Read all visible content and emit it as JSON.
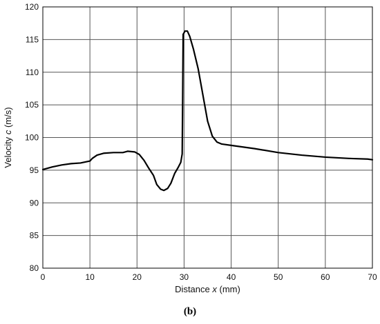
{
  "chart_data": {
    "type": "line",
    "title": "",
    "xlabel": {
      "prefix": "Distance ",
      "var": "x",
      "suffix": " (mm)"
    },
    "ylabel": {
      "prefix": "Velocity ",
      "var": "c",
      "suffix": " (m/s)"
    },
    "xlim": [
      0,
      70
    ],
    "ylim": [
      80,
      120
    ],
    "xticks": [
      0,
      10,
      20,
      30,
      40,
      50,
      60,
      70
    ],
    "yticks": [
      80,
      85,
      90,
      95,
      100,
      105,
      110,
      115,
      120
    ],
    "grid": true,
    "line_color": "#000000",
    "grid_color": "#555555",
    "series": [
      {
        "x": [
          0,
          2,
          4,
          6,
          8,
          10,
          10.5,
          11.5,
          13,
          15,
          17,
          18,
          19.5,
          20.5,
          21.5,
          22.5,
          23.5,
          24.2,
          25,
          25.7,
          26.5,
          27.2,
          28,
          28.8,
          29.3,
          29.6,
          29.7,
          29.8,
          30.2,
          30.7,
          31.2,
          32,
          33,
          34,
          35,
          36,
          37,
          38,
          40,
          45,
          50,
          55,
          60,
          65,
          69,
          70
        ],
        "y": [
          95.1,
          95.5,
          95.8,
          96.0,
          96.1,
          96.4,
          96.8,
          97.3,
          97.6,
          97.7,
          97.7,
          97.9,
          97.8,
          97.4,
          96.5,
          95.3,
          94.2,
          92.8,
          92.1,
          91.9,
          92.2,
          93.0,
          94.5,
          95.5,
          96.2,
          97.5,
          106,
          115.8,
          116.3,
          116.3,
          115.5,
          113.5,
          110.5,
          106.5,
          102.5,
          100.2,
          99.3,
          99.0,
          98.8,
          98.3,
          97.7,
          97.3,
          97.0,
          96.8,
          96.7,
          96.6
        ]
      }
    ]
  },
  "caption": "(b)"
}
